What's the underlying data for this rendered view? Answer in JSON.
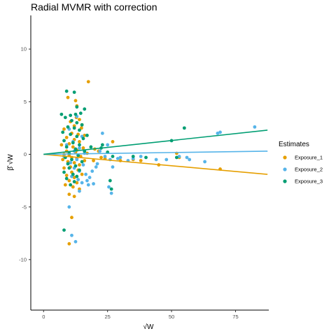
{
  "chart_data": {
    "type": "scatter",
    "title": "Radial MVMR with correction",
    "xlabel": "√W",
    "ylabel": "β̂ √W",
    "xlim": [
      -5,
      88
    ],
    "ylim": [
      -14.8,
      13.2
    ],
    "x_ticks": [
      0,
      25,
      50,
      75
    ],
    "y_ticks": [
      -10,
      -5,
      0,
      5,
      10
    ],
    "x_tick_labels": [
      "0",
      "25",
      "50",
      "75"
    ],
    "y_tick_labels": [
      "-10",
      "-5",
      "0",
      "5",
      "10"
    ],
    "grid": false,
    "legend": {
      "title": "Estimates",
      "position": "right"
    },
    "series": [
      {
        "name": "Exposure_1",
        "color": "#E69F00",
        "fit_line": {
          "x": [
            0,
            87.5
          ],
          "y": [
            0,
            -1.9
          ]
        },
        "points": [
          [
            17.5,
            6.9
          ],
          [
            9.5,
            5.4
          ],
          [
            12.5,
            5.1
          ],
          [
            13,
            4.6
          ],
          [
            14,
            3.3
          ],
          [
            10.5,
            3.1
          ],
          [
            12,
            2.7
          ],
          [
            15,
            2.8
          ],
          [
            8,
            2.4
          ],
          [
            11,
            2.0
          ],
          [
            13.5,
            1.9
          ],
          [
            16,
            1.8
          ],
          [
            9,
            1.6
          ],
          [
            12,
            1.4
          ],
          [
            14,
            1.2
          ],
          [
            10,
            1.0
          ],
          [
            7,
            0.9
          ],
          [
            11.5,
            0.7
          ],
          [
            15.5,
            0.6
          ],
          [
            13,
            0.4
          ],
          [
            9,
            0.3
          ],
          [
            12.5,
            0.2
          ],
          [
            17,
            0.1
          ],
          [
            8,
            0.0
          ],
          [
            10,
            -0.1
          ],
          [
            14.5,
            -0.2
          ],
          [
            11,
            -0.3
          ],
          [
            13,
            -0.4
          ],
          [
            7.5,
            -0.5
          ],
          [
            16,
            -0.6
          ],
          [
            9.5,
            -0.7
          ],
          [
            12,
            -0.8
          ],
          [
            14,
            -1.0
          ],
          [
            10.5,
            -1.2
          ],
          [
            8,
            -1.3
          ],
          [
            13.5,
            -1.5
          ],
          [
            11,
            -1.7
          ],
          [
            15,
            -1.9
          ],
          [
            9,
            -2.0
          ],
          [
            12,
            -2.2
          ],
          [
            10,
            -2.5
          ],
          [
            13,
            -2.7
          ],
          [
            8.5,
            -2.9
          ],
          [
            11.5,
            -3.1
          ],
          [
            14,
            -3.3
          ],
          [
            10,
            -3.8
          ],
          [
            12,
            -4.0
          ],
          [
            11,
            -6.0
          ],
          [
            10,
            -8.5
          ],
          [
            20,
            0.5
          ],
          [
            21.5,
            0.3
          ],
          [
            22.5,
            -0.3
          ],
          [
            19.5,
            -0.6
          ],
          [
            24,
            -0.4
          ],
          [
            27,
            1.2
          ],
          [
            30,
            -0.6
          ],
          [
            35,
            -0.5
          ],
          [
            38,
            -0.6
          ],
          [
            45,
            -1.0
          ],
          [
            52,
            0.1
          ],
          [
            53,
            -0.3
          ],
          [
            69,
            -1.4
          ],
          [
            14.8,
            2.5
          ],
          [
            12.8,
            3.5
          ]
        ]
      },
      {
        "name": "Exposure_2",
        "color": "#56B4E9",
        "fit_line": {
          "x": [
            0,
            87.5
          ],
          "y": [
            0,
            0.3
          ]
        },
        "points": [
          [
            10,
            2.4
          ],
          [
            13,
            3.6
          ],
          [
            15,
            1.7
          ],
          [
            11.5,
            1.2
          ],
          [
            9,
            0.9
          ],
          [
            14,
            0.6
          ],
          [
            12,
            0.3
          ],
          [
            16,
            0.1
          ],
          [
            8,
            -0.2
          ],
          [
            13,
            -0.5
          ],
          [
            10.5,
            -0.8
          ],
          [
            15.5,
            -1.0
          ],
          [
            12,
            -1.3
          ],
          [
            14,
            -1.6
          ],
          [
            16.5,
            -1.9
          ],
          [
            11,
            -2.1
          ],
          [
            13.5,
            -2.4
          ],
          [
            15,
            -2.7
          ],
          [
            17,
            -2.5
          ],
          [
            18,
            -2.2
          ],
          [
            19,
            -1.6
          ],
          [
            20.5,
            -1.2
          ],
          [
            21,
            -0.9
          ],
          [
            22,
            0.3
          ],
          [
            23,
            2.0
          ],
          [
            25,
            0.9
          ],
          [
            26,
            -0.5
          ],
          [
            27,
            -1.2
          ],
          [
            25.5,
            -3.1
          ],
          [
            26.5,
            -3.7
          ],
          [
            24,
            -0.2
          ],
          [
            29,
            -0.4
          ],
          [
            30,
            -0.3
          ],
          [
            33,
            -0.6
          ],
          [
            35,
            -0.4
          ],
          [
            38,
            -0.2
          ],
          [
            44,
            -0.5
          ],
          [
            48,
            -0.5
          ],
          [
            53,
            -0.2
          ],
          [
            56,
            -0.3
          ],
          [
            57,
            -0.5
          ],
          [
            63,
            -0.7
          ],
          [
            68,
            2.0
          ],
          [
            69,
            2.1
          ],
          [
            82.5,
            2.6
          ],
          [
            11,
            -7.7
          ],
          [
            12.5,
            -8.3
          ],
          [
            10,
            -5.0
          ],
          [
            17.5,
            -2.9
          ],
          [
            19.5,
            -2.8
          ],
          [
            14,
            -3.5
          ]
        ]
      },
      {
        "name": "Exposure_3",
        "color": "#009E73",
        "fit_line": {
          "x": [
            0,
            87.5
          ],
          "y": [
            0,
            2.3
          ]
        },
        "points": [
          [
            9,
            6.0
          ],
          [
            12,
            5.9
          ],
          [
            13,
            4.5
          ],
          [
            16,
            4.3
          ],
          [
            7,
            3.8
          ],
          [
            10.5,
            3.7
          ],
          [
            12.5,
            3.8
          ],
          [
            14.5,
            3.9
          ],
          [
            8.5,
            3.5
          ],
          [
            11,
            3.2
          ],
          [
            13,
            3.0
          ],
          [
            15,
            2.8
          ],
          [
            9.5,
            2.6
          ],
          [
            12,
            2.5
          ],
          [
            14,
            2.3
          ],
          [
            7.5,
            2.1
          ],
          [
            10.5,
            1.9
          ],
          [
            13,
            1.7
          ],
          [
            15.5,
            1.5
          ],
          [
            8,
            1.3
          ],
          [
            11.5,
            1.1
          ],
          [
            14,
            0.9
          ],
          [
            9,
            0.7
          ],
          [
            12.5,
            0.5
          ],
          [
            16,
            0.3
          ],
          [
            10,
            0.1
          ],
          [
            13.5,
            -0.1
          ],
          [
            8.5,
            -0.3
          ],
          [
            11,
            -0.5
          ],
          [
            15,
            -0.7
          ],
          [
            9.5,
            -0.9
          ],
          [
            12.5,
            -1.1
          ],
          [
            10,
            -1.3
          ],
          [
            14,
            -1.5
          ],
          [
            8,
            -1.7
          ],
          [
            11.5,
            -1.9
          ],
          [
            13,
            -2.1
          ],
          [
            9,
            -2.3
          ],
          [
            12,
            -2.6
          ],
          [
            10.5,
            -2.9
          ],
          [
            22.5,
            0.6
          ],
          [
            23,
            0.9
          ],
          [
            25,
            0.2
          ],
          [
            27,
            -0.2
          ],
          [
            26,
            -2.5
          ],
          [
            26.5,
            -3.3
          ],
          [
            35,
            -0.2
          ],
          [
            40,
            -0.3
          ],
          [
            50,
            1.3
          ],
          [
            55,
            2.5
          ],
          [
            52,
            -0.3
          ],
          [
            8,
            -7.2
          ],
          [
            17,
            1.8
          ],
          [
            18.5,
            0.7
          ]
        ]
      }
    ]
  }
}
